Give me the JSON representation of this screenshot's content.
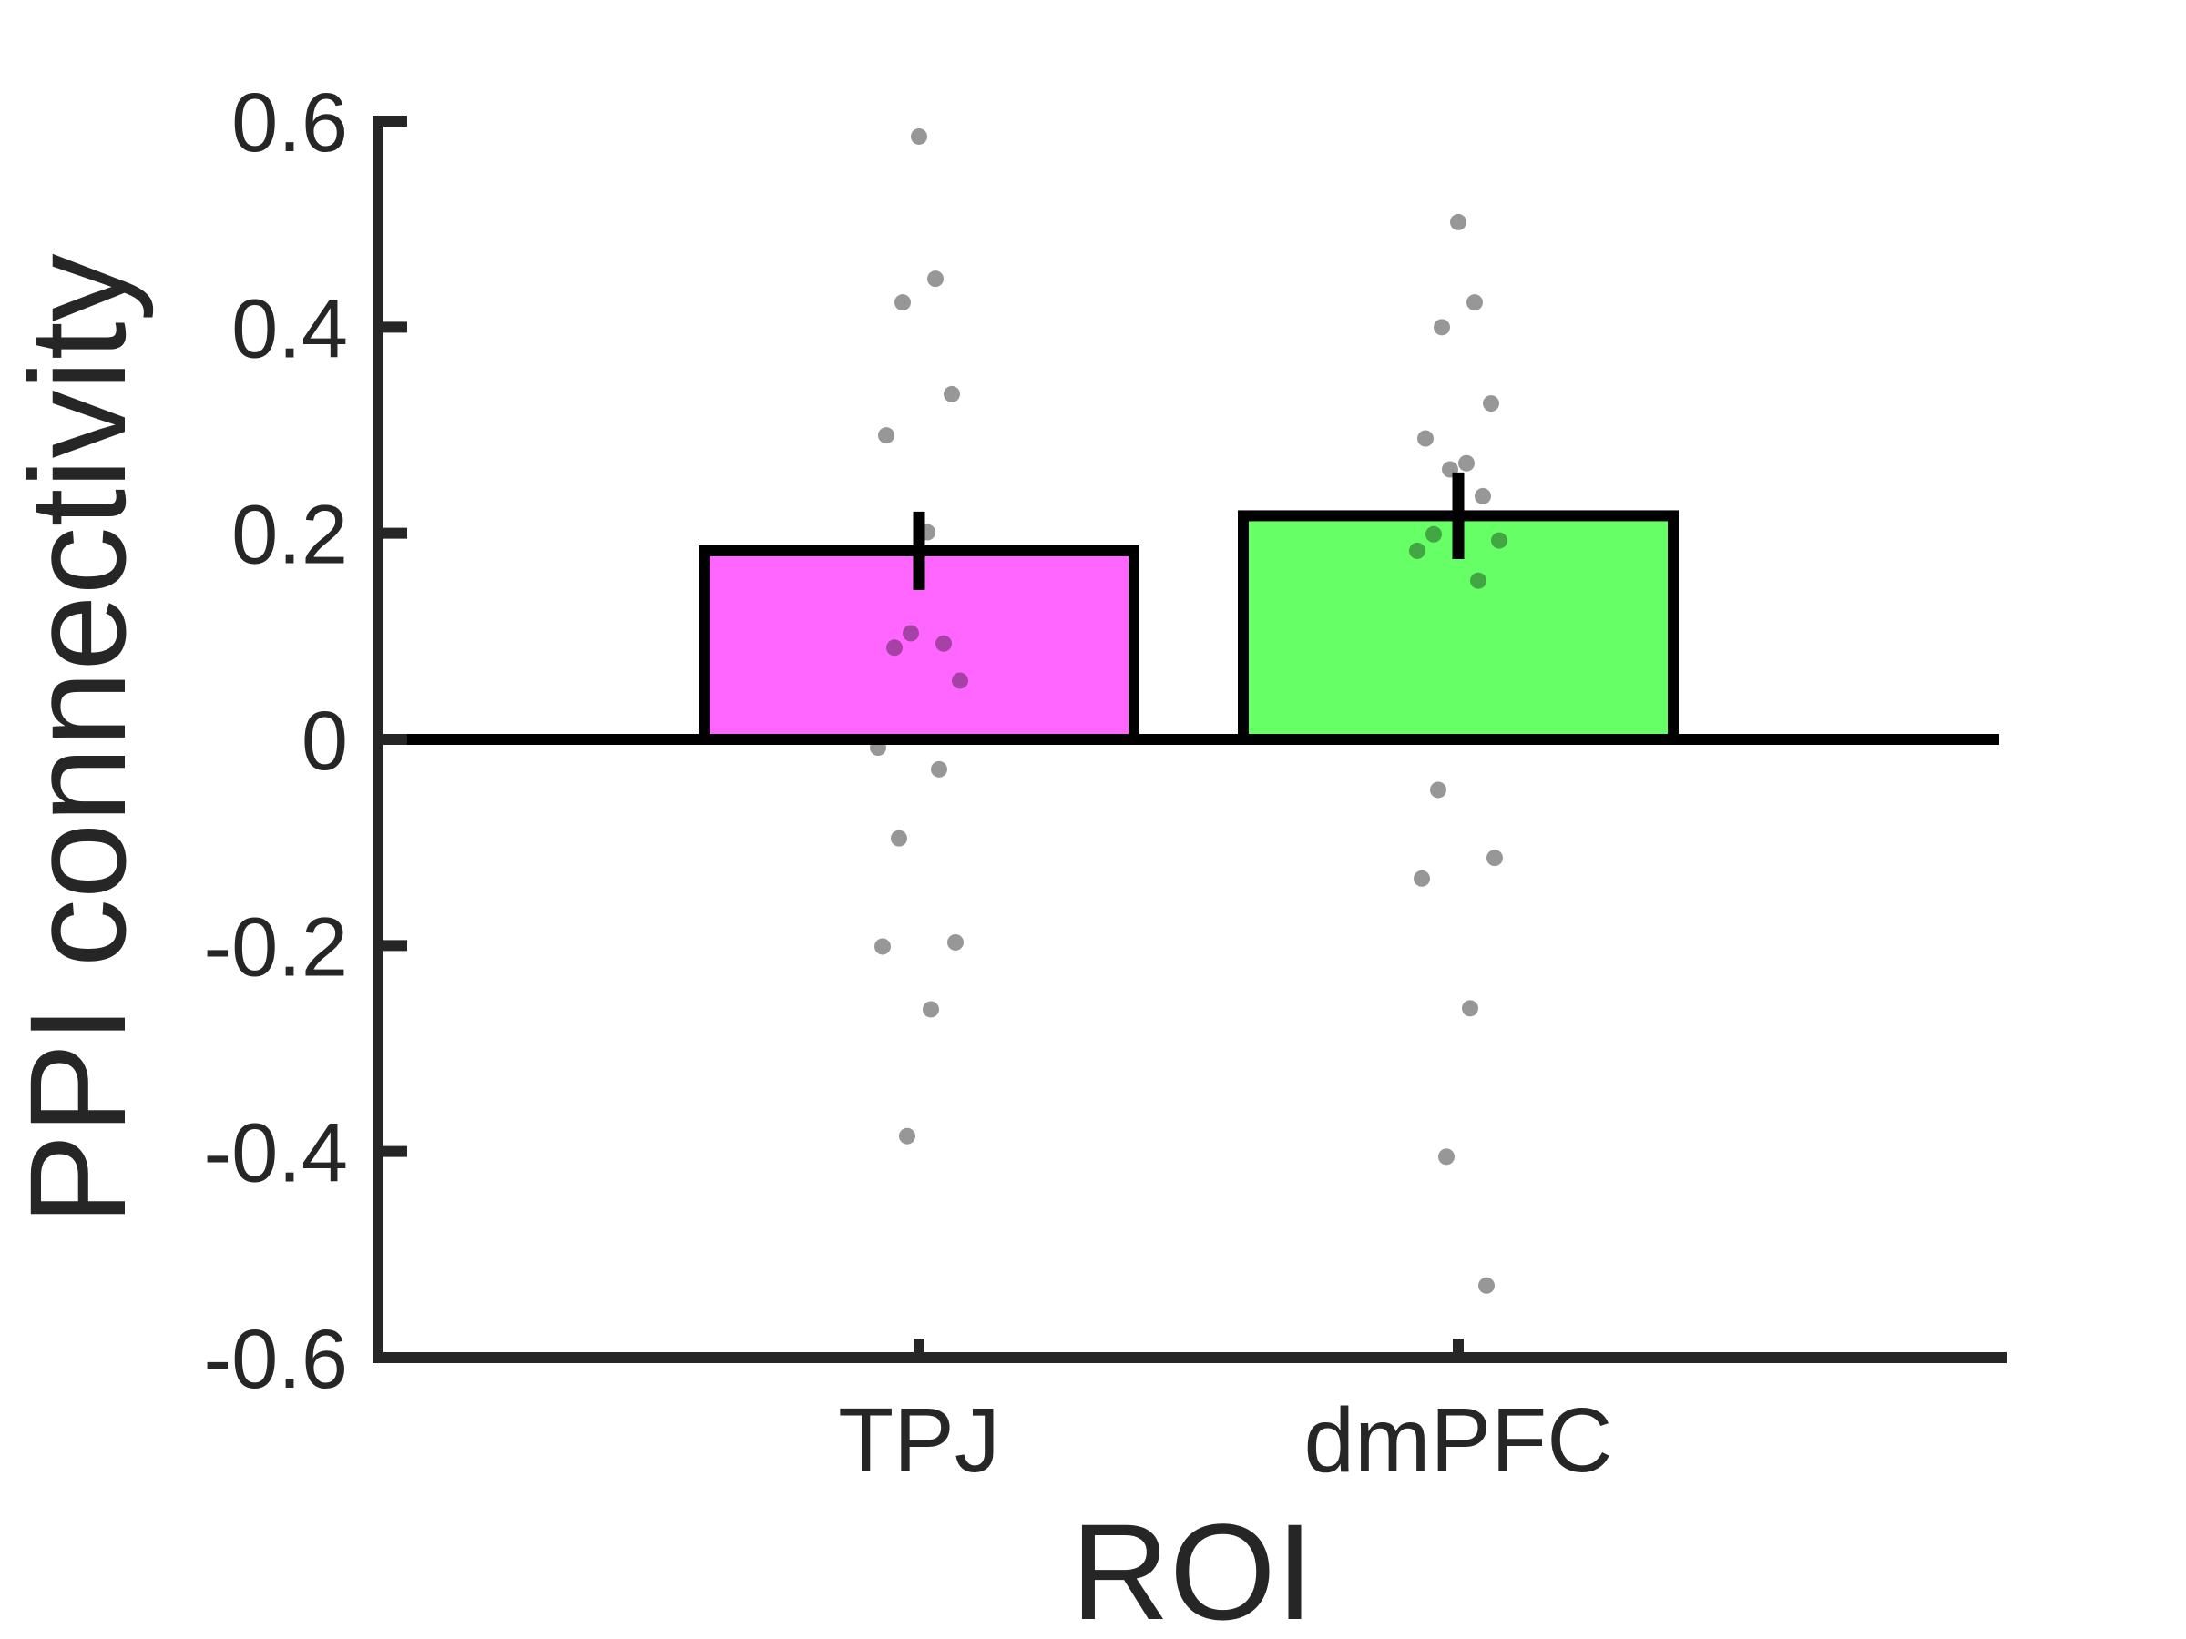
{
  "chart_data": {
    "type": "bar",
    "xlabel": "ROI",
    "ylabel": "PPI connectivity",
    "ylim": [
      -0.6,
      0.6
    ],
    "yticks": [
      "-0.6",
      "-0.4",
      "-0.2",
      "0",
      "0.2",
      "0.4",
      "0.6"
    ],
    "grid": false,
    "categories": [
      "TPJ",
      "dmPFC"
    ],
    "values": [
      0.183,
      0.217
    ],
    "error": [
      0.038,
      0.042
    ],
    "bar_colors": [
      "#ff66ff",
      "#66ff66"
    ],
    "points": [
      [
        0.585,
        0.447,
        0.424,
        0.335,
        0.295,
        0.201,
        0.103,
        0.093,
        0.089,
        0.057,
        -0.008,
        -0.029,
        -0.096,
        -0.197,
        -0.201,
        -0.262,
        -0.385
      ],
      [
        0.502,
        0.424,
        0.4,
        0.326,
        0.292,
        0.268,
        0.262,
        0.236,
        0.199,
        0.193,
        0.183,
        0.154,
        -0.049,
        -0.115,
        -0.135,
        -0.261,
        -0.405,
        -0.53
      ]
    ]
  }
}
